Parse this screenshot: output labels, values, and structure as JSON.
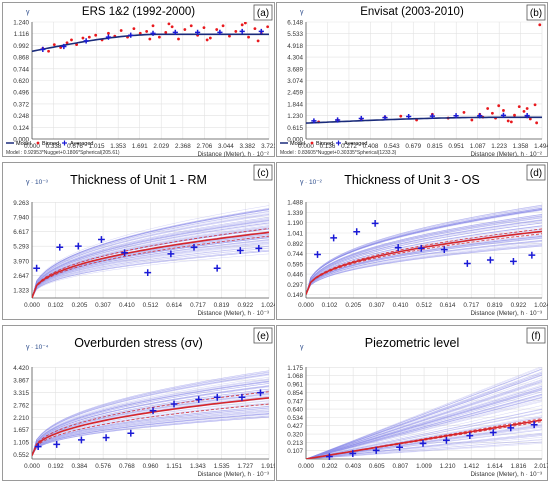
{
  "figure": {
    "footer_left": "Model : 0.92953*Nugget+0.1806*Spherical(205.61)",
    "footer_right": "Model : 0.83605*Nugget+0.30335*Spherical(1233.3)"
  },
  "legend": {
    "model": "Model",
    "binned": "Binned",
    "averaged": "Averaged"
  },
  "colors": {
    "binned": "#e8191e",
    "averaged": "#1a1ad6",
    "model": "#1a2b7a",
    "fan_blue": "#8a8ae8",
    "fan_red": "#d6262b"
  },
  "chart_data": [
    {
      "id": "a",
      "letter": "(a)",
      "type": "scatter",
      "title": "ERS 1&2 (1992-2000)",
      "ylabel": "γ",
      "yexp": "",
      "xlabel": "Distance (Meter), h · 10⁻²",
      "xticks": [
        "0.000",
        "0.338",
        "0.676",
        "1.015",
        "1.353",
        "1.691",
        "2.029",
        "2.368",
        "2.706",
        "3.044",
        "3.382",
        "3.721"
      ],
      "yticks": [
        "0.000",
        "0.124",
        "0.248",
        "0.372",
        "0.496",
        "0.620",
        "0.744",
        "0.868",
        "0.992",
        "1.116",
        "1.240"
      ],
      "xlim": [
        0,
        3.721
      ],
      "ylim": [
        0,
        1.24
      ],
      "binned": [
        [
          0.17,
          0.96
        ],
        [
          0.26,
          0.93
        ],
        [
          0.35,
          1.0
        ],
        [
          0.45,
          0.97
        ],
        [
          0.55,
          1.02
        ],
        [
          0.62,
          1.05
        ],
        [
          0.7,
          1.0
        ],
        [
          0.8,
          1.07
        ],
        [
          0.9,
          1.08
        ],
        [
          1.0,
          1.1
        ],
        [
          1.1,
          1.05
        ],
        [
          1.2,
          1.12
        ],
        [
          1.3,
          1.09
        ],
        [
          1.4,
          1.15
        ],
        [
          1.5,
          1.08
        ],
        [
          1.6,
          1.17
        ],
        [
          1.7,
          1.12
        ],
        [
          1.8,
          1.14
        ],
        [
          1.9,
          1.2
        ],
        [
          2.0,
          1.08
        ],
        [
          2.1,
          1.13
        ],
        [
          2.2,
          1.19
        ],
        [
          2.3,
          1.06
        ],
        [
          2.4,
          1.16
        ],
        [
          2.5,
          1.2
        ],
        [
          2.6,
          1.1
        ],
        [
          2.7,
          1.18
        ],
        [
          2.8,
          1.07
        ],
        [
          2.9,
          1.16
        ],
        [
          3.0,
          1.2
        ],
        [
          3.1,
          1.09
        ],
        [
          3.2,
          1.14
        ],
        [
          3.3,
          1.21
        ],
        [
          3.4,
          1.08
        ],
        [
          3.5,
          1.17
        ],
        [
          3.6,
          1.12
        ],
        [
          3.7,
          1.19
        ],
        [
          2.15,
          1.22
        ],
        [
          2.75,
          1.05
        ],
        [
          3.35,
          1.23
        ],
        [
          1.85,
          1.06
        ],
        [
          3.55,
          1.04
        ]
      ],
      "averaged": [
        [
          0.17,
          0.95
        ],
        [
          0.5,
          0.98
        ],
        [
          0.85,
          1.04
        ],
        [
          1.2,
          1.08
        ],
        [
          1.55,
          1.1
        ],
        [
          1.9,
          1.12
        ],
        [
          2.25,
          1.13
        ],
        [
          2.6,
          1.13
        ],
        [
          2.95,
          1.13
        ],
        [
          3.3,
          1.14
        ],
        [
          3.6,
          1.14
        ]
      ],
      "model_curve": {
        "nugget": 0.92953,
        "sill": 0.1806,
        "range": 2.0561,
        "xmax": 3.721
      }
    },
    {
      "id": "b",
      "letter": "(b)",
      "type": "scatter",
      "title": "Envisat (2003-2010)",
      "ylabel": "γ",
      "yexp": "",
      "xlabel": "Distance (Meter), h · 10⁻²",
      "xticks": [
        "0.000",
        "0.136",
        "0.272",
        "0.408",
        "0.543",
        "0.679",
        "0.815",
        "0.951",
        "1.087",
        "1.223",
        "1.358",
        "1.494"
      ],
      "yticks": [
        "0.000",
        "0.615",
        "1.230",
        "1.844",
        "2.459",
        "3.074",
        "3.689",
        "4.304",
        "4.918",
        "5.533",
        "6.148"
      ],
      "xlim": [
        0,
        1.494
      ],
      "ylim": [
        0,
        6.148
      ],
      "binned": [
        [
          0.08,
          0.9
        ],
        [
          0.2,
          1.0
        ],
        [
          0.35,
          1.05
        ],
        [
          0.5,
          1.15
        ],
        [
          0.6,
          1.2
        ],
        [
          0.7,
          1.0
        ],
        [
          0.8,
          1.3
        ],
        [
          0.9,
          1.1
        ],
        [
          1.0,
          1.4
        ],
        [
          1.05,
          1.0
        ],
        [
          1.1,
          1.3
        ],
        [
          1.15,
          1.6
        ],
        [
          1.2,
          1.1
        ],
        [
          1.25,
          1.5
        ],
        [
          1.3,
          0.9
        ],
        [
          1.35,
          1.7
        ],
        [
          1.4,
          1.2
        ],
        [
          1.45,
          1.8
        ],
        [
          1.48,
          6.0
        ],
        [
          1.42,
          1.05
        ],
        [
          1.38,
          1.45
        ],
        [
          1.32,
          1.25
        ],
        [
          1.28,
          0.95
        ],
        [
          1.22,
          1.75
        ],
        [
          1.18,
          1.35
        ],
        [
          1.12,
          1.15
        ],
        [
          1.46,
          0.85
        ],
        [
          1.4,
          1.6
        ]
      ],
      "averaged": [
        [
          0.05,
          0.95
        ],
        [
          0.2,
          1.0
        ],
        [
          0.35,
          1.08
        ],
        [
          0.5,
          1.12
        ],
        [
          0.65,
          1.18
        ],
        [
          0.8,
          1.2
        ],
        [
          0.95,
          1.22
        ],
        [
          1.1,
          1.22
        ],
        [
          1.25,
          1.24
        ],
        [
          1.4,
          1.23
        ]
      ],
      "model_curve": {
        "nugget": 0.83605,
        "sill": 0.30335,
        "range": 1.2333,
        "xmax": 1.494
      }
    },
    {
      "id": "c",
      "letter": "(c)",
      "type": "scatter",
      "title": "Thickness of Unit 1 - RM",
      "ylabel": "γ",
      "yexp": "· 10⁻³",
      "xlabel": "Distance (Meter), h · 10⁻³",
      "xticks": [
        "0.000",
        "0.102",
        "0.205",
        "0.307",
        "0.410",
        "0.512",
        "0.614",
        "0.717",
        "0.819",
        "0.922",
        "1.024"
      ],
      "yticks": [
        "1.323",
        "2.647",
        "3.970",
        "5.293",
        "6.617",
        "7.940",
        "9.263"
      ],
      "xlim": [
        0,
        1.024
      ],
      "ylim": [
        0.6,
        9.3
      ],
      "averaged": [
        [
          0.02,
          3.3
        ],
        [
          0.12,
          5.2
        ],
        [
          0.2,
          5.3
        ],
        [
          0.3,
          5.9
        ],
        [
          0.4,
          4.7
        ],
        [
          0.5,
          2.9
        ],
        [
          0.6,
          4.6
        ],
        [
          0.7,
          5.2
        ],
        [
          0.8,
          3.3
        ],
        [
          0.9,
          4.9
        ],
        [
          0.98,
          5.1
        ]
      ],
      "fan": {
        "x0": 0.0,
        "y0": 0.6,
        "xmax": 1.024,
        "lo": 4.6,
        "hi": 9.0,
        "mlo": 6.2,
        "mhi": 6.9
      }
    },
    {
      "id": "d",
      "letter": "(d)",
      "type": "scatter",
      "title": "Thickness of Unit 3 - OS",
      "ylabel": "γ",
      "yexp": "· 10⁻²",
      "xlabel": "Distance (Meter), h · 10⁻³",
      "xticks": [
        "0.000",
        "0.102",
        "0.205",
        "0.307",
        "0.410",
        "0.512",
        "0.614",
        "0.717",
        "0.819",
        "0.922",
        "1.024"
      ],
      "yticks": [
        "0.149",
        "0.297",
        "0.446",
        "0.595",
        "0.744",
        "0.892",
        "1.041",
        "1.190",
        "1.339",
        "1.488"
      ],
      "xlim": [
        0,
        1.024
      ],
      "ylim": [
        0.1,
        1.49
      ],
      "averaged": [
        [
          0.05,
          0.73
        ],
        [
          0.12,
          0.97
        ],
        [
          0.22,
          1.06
        ],
        [
          0.3,
          1.18
        ],
        [
          0.4,
          0.83
        ],
        [
          0.5,
          0.82
        ],
        [
          0.6,
          0.8
        ],
        [
          0.7,
          0.6
        ],
        [
          0.8,
          0.65
        ],
        [
          0.9,
          0.63
        ],
        [
          0.98,
          0.72
        ]
      ],
      "fan": {
        "x0": 0.0,
        "y0": 0.15,
        "xmax": 1.024,
        "lo": 0.85,
        "hi": 1.45,
        "mlo": 1.03,
        "mhi": 1.1
      }
    },
    {
      "id": "e",
      "letter": "(e)",
      "type": "scatter",
      "title": "Overburden stress (σv)",
      "ylabel": "γ",
      "yexp": "· 10⁻⁴",
      "xlabel": "Distance (Meter), h · 10⁻³",
      "xticks": [
        "0.000",
        "0.192",
        "0.384",
        "0.576",
        "0.768",
        "0.960",
        "1.151",
        "1.343",
        "1.535",
        "1.727",
        "1.919"
      ],
      "yticks": [
        "0.552",
        "1.105",
        "1.657",
        "2.210",
        "2.762",
        "3.315",
        "3.867",
        "4.420"
      ],
      "xlim": [
        0,
        1.919
      ],
      "ylim": [
        0.35,
        4.45
      ],
      "averaged": [
        [
          0.05,
          0.9
        ],
        [
          0.2,
          1.0
        ],
        [
          0.4,
          1.2
        ],
        [
          0.6,
          1.3
        ],
        [
          0.8,
          1.5
        ],
        [
          0.98,
          2.5
        ],
        [
          1.15,
          2.8
        ],
        [
          1.35,
          3.0
        ],
        [
          1.5,
          3.1
        ],
        [
          1.7,
          3.1
        ],
        [
          1.85,
          3.3
        ]
      ],
      "fan": {
        "x0": 0.0,
        "y0": 0.5,
        "xmax": 1.919,
        "lo": 2.2,
        "hi": 4.3,
        "mlo": 2.8,
        "mhi": 3.35
      }
    },
    {
      "id": "f",
      "letter": "(f)",
      "type": "scatter",
      "title": "Piezometric level",
      "ylabel": "γ",
      "yexp": "",
      "xlabel": "Distance (Meter), h · 10⁻³",
      "xticks": [
        "0.000",
        "0.202",
        "0.403",
        "0.605",
        "0.807",
        "1.009",
        "1.210",
        "1.412",
        "1.614",
        "1.816",
        "2.017"
      ],
      "yticks": [
        "0.107",
        "0.213",
        "0.320",
        "0.427",
        "0.534",
        "0.640",
        "0.747",
        "0.854",
        "0.961",
        "1.068",
        "1.175"
      ],
      "xlim": [
        0,
        2.017
      ],
      "ylim": [
        0.0,
        1.18
      ],
      "averaged": [
        [
          0.2,
          0.03
        ],
        [
          0.4,
          0.07
        ],
        [
          0.6,
          0.11
        ],
        [
          0.8,
          0.15
        ],
        [
          1.0,
          0.2
        ],
        [
          1.2,
          0.24
        ],
        [
          1.4,
          0.3
        ],
        [
          1.6,
          0.34
        ],
        [
          1.75,
          0.4
        ],
        [
          1.95,
          0.44
        ]
      ],
      "fan": {
        "x0": 0.0,
        "y0": 0.0,
        "xmax": 2.017,
        "lo": 0.2,
        "hi": 1.2,
        "mlo": 0.48,
        "mhi": 0.52,
        "linear": true
      }
    }
  ]
}
